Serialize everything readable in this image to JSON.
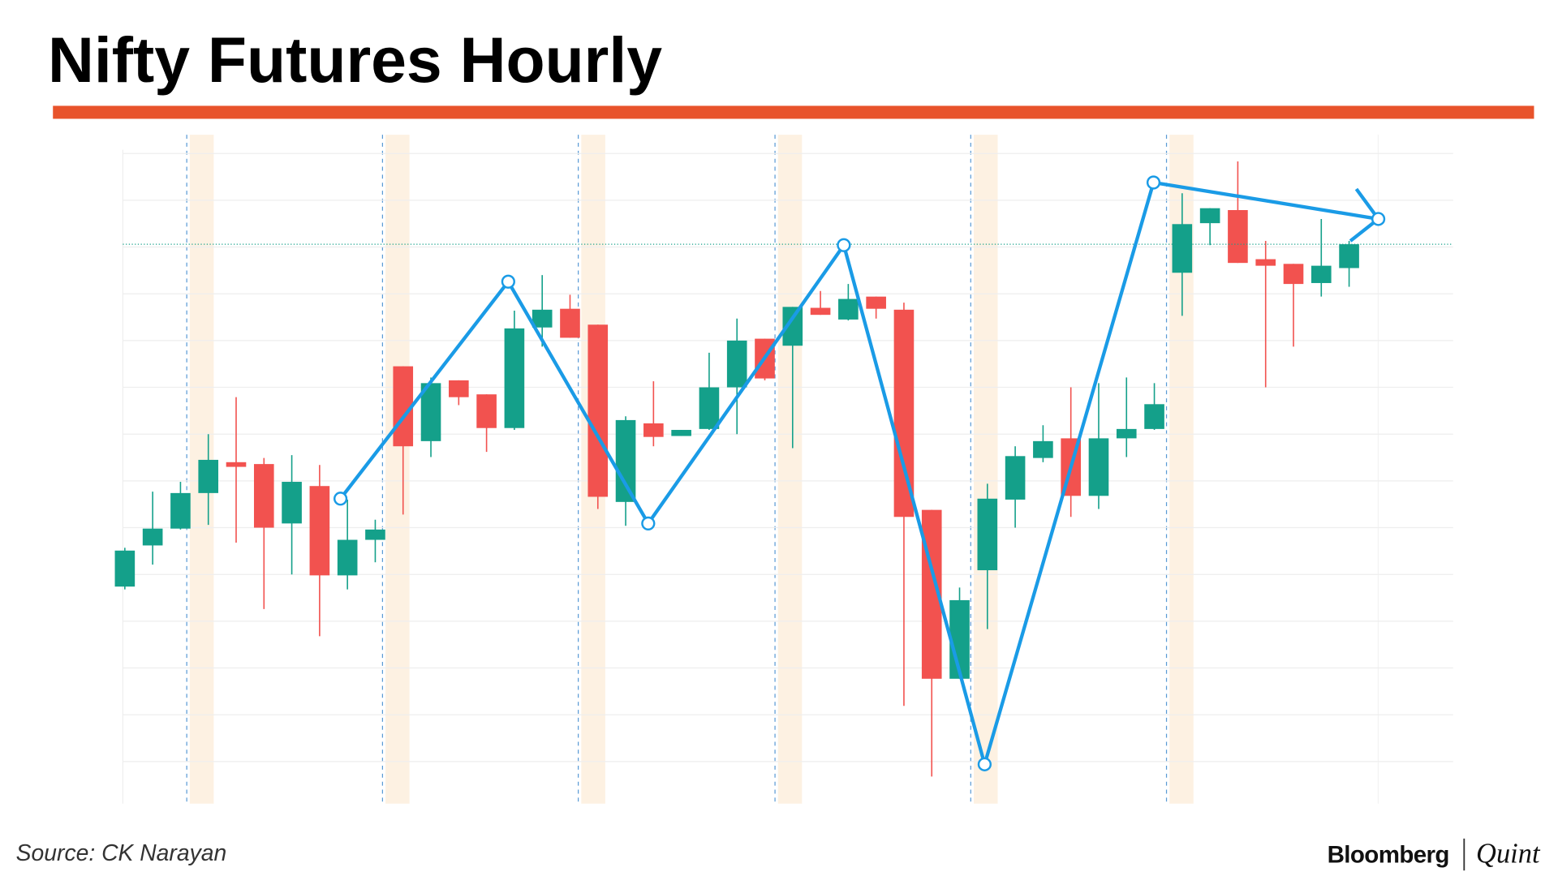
{
  "chart_data": {
    "type": "candlestick",
    "title": "Nifty Futures Hourly",
    "source": "Source: CK Narayan",
    "brand": "Bloomberg",
    "brand_sub": "Quint",
    "categories": [
      null,
      null,
      null,
      null,
      null,
      null,
      null,
      null,
      null,
      null,
      null,
      null,
      null,
      null,
      null,
      null,
      null,
      null,
      null,
      null,
      null,
      null,
      null,
      null,
      null,
      null,
      null,
      null,
      null,
      null,
      null,
      null,
      null,
      null,
      null,
      null,
      null,
      null,
      null,
      null,
      null,
      null,
      null,
      null,
      null
    ],
    "series": [
      {
        "up_color": "#14a08a",
        "down_color": "#f2524f",
        "open": [
          37.4,
          46.2,
          49.8,
          57.4,
          64.0,
          63.6,
          50.9,
          58.9,
          39.8,
          47.4,
          84.5,
          68.5,
          81.5,
          78.5,
          71.3,
          92.8,
          96.8,
          93.4,
          55.5,
          72.3,
          69.6,
          71.1,
          80.0,
          90.4,
          88.9,
          97.0,
          94.5,
          99.4,
          96.6,
          53.8,
          17.7,
          40.9,
          56.0,
          64.9,
          69.1,
          56.8,
          69.1,
          71.1,
          104.5,
          115.1,
          117.9,
          107.4,
          106.4,
          102.3,
          105.5
        ],
        "high": [
          45.7,
          57.7,
          59.8,
          70.0,
          77.9,
          64.9,
          65.5,
          63.4,
          56.0,
          51.7,
          84.5,
          82.1,
          81.5,
          78.5,
          96.4,
          104.0,
          99.8,
          93.4,
          73.8,
          81.3,
          70.9,
          87.4,
          94.7,
          90.4,
          97.2,
          100.6,
          102.1,
          99.4,
          98.1,
          53.8,
          37.2,
          59.4,
          67.4,
          71.9,
          80.0,
          80.9,
          82.1,
          80.9,
          121.5,
          118.3,
          128.3,
          111.3,
          106.4,
          116.0,
          111.3
        ],
        "low": [
          36.8,
          42.1,
          49.6,
          50.6,
          46.8,
          32.6,
          40.0,
          26.8,
          36.8,
          42.6,
          52.8,
          65.1,
          76.2,
          66.2,
          70.9,
          88.7,
          90.6,
          54.0,
          50.4,
          67.4,
          69.6,
          70.9,
          70.0,
          81.5,
          67.0,
          95.5,
          94.3,
          94.7,
          11.9,
          -3.2,
          17.7,
          28.3,
          50.0,
          64.0,
          52.3,
          54.0,
          65.1,
          70.9,
          95.3,
          110.4,
          106.6,
          80.0,
          88.7,
          99.4,
          101.5
        ],
        "close": [
          45.1,
          49.8,
          57.4,
          64.5,
          63.0,
          50.0,
          59.8,
          39.8,
          47.4,
          49.6,
          67.4,
          80.9,
          77.9,
          71.3,
          92.6,
          96.6,
          90.6,
          56.6,
          73.0,
          69.4,
          70.9,
          80.0,
          90.0,
          81.9,
          97.2,
          95.5,
          98.9,
          96.8,
          52.3,
          17.7,
          34.5,
          56.2,
          65.3,
          68.5,
          56.8,
          69.1,
          71.1,
          76.4,
          114.9,
          118.3,
          106.6,
          106.0,
          102.1,
          106.0,
          110.6
        ]
      }
    ],
    "zigzag": {
      "color": "#1a9be6",
      "x": [
        7.75,
        13.78,
        18.81,
        25.84,
        30.9,
        36.97,
        45.05
      ],
      "values": [
        56.2,
        102.6,
        50.9,
        110.4,
        -0.6,
        123.8,
        116.0
      ]
    },
    "ylim": [
      -9,
      134
    ],
    "yticks": [
      0,
      10,
      20,
      30,
      40,
      50,
      60,
      70,
      80,
      90,
      100,
      110,
      120,
      130
    ],
    "grid": true
  }
}
